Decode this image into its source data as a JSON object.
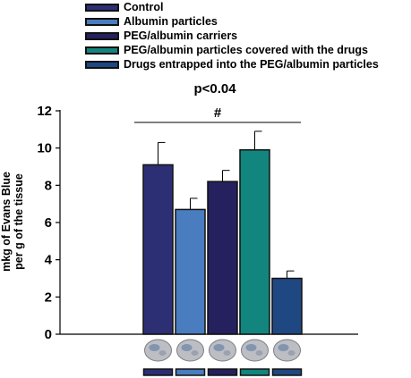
{
  "chart_data": {
    "type": "bar",
    "title": "",
    "ylabel": "mkg of Evans Blue per g of the tissue",
    "ylabel_lines": [
      "mkg of Evans Blue",
      "per g of the tissue"
    ],
    "ylim": [
      0,
      12
    ],
    "yticks": [
      "0",
      "2",
      "4",
      "6",
      "8",
      "10",
      "12"
    ],
    "grid": false,
    "legend_placement": "top",
    "categories": [
      "Control",
      "Albumin particles",
      "PEG/albumin carriers",
      "PEG/albumin particles covered with the drugs",
      "Drugs entrapped into the PEG/albumin particles"
    ],
    "values": [
      9.1,
      6.7,
      8.2,
      9.9,
      3.0
    ],
    "errors": [
      1.2,
      0.6,
      0.6,
      1.0,
      0.4
    ],
    "colors": [
      "#2c2f74",
      "#4a7cc0",
      "#24215e",
      "#12867e",
      "#1f4883"
    ],
    "annotation": {
      "p_value": "p<0.04",
      "marker": "#"
    }
  }
}
